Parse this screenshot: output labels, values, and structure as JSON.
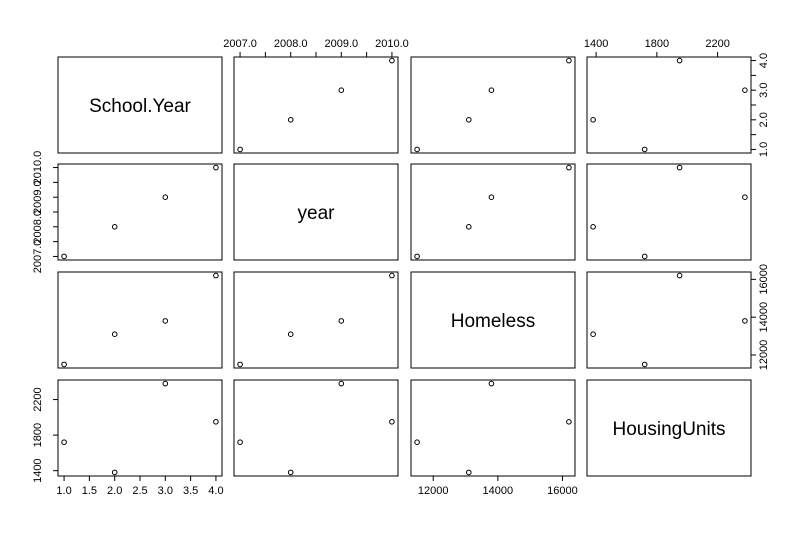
{
  "chart_data": {
    "type": "scatter-matrix",
    "variables": [
      "School.Year",
      "year",
      "Homeless",
      "HousingUnits"
    ],
    "data": {
      "School.Year": [
        1,
        2,
        3,
        4
      ],
      "year": [
        2007,
        2008,
        2009,
        2010
      ],
      "Homeless": [
        11500,
        13100,
        13800,
        16200
      ],
      "HousingUnits": [
        1720,
        1380,
        2380,
        1950
      ]
    },
    "axes": {
      "School.Year": {
        "range": [
          1,
          4
        ],
        "ticks": [
          "1.0",
          "1.5",
          "2.0",
          "2.5",
          "3.0",
          "3.5",
          "4.0"
        ]
      },
      "year": {
        "range": [
          2007,
          2010
        ],
        "ticks": [
          "2007.0",
          "2007.5",
          "2008.0",
          "2008.5",
          "2009.0",
          "2009.5",
          "2010.0"
        ]
      },
      "Homeless": {
        "range": [
          11500,
          16200
        ],
        "ticks": [
          "12000",
          "14000",
          "16000"
        ]
      },
      "HousingUnits": {
        "range": [
          1380,
          2380
        ],
        "ticks": [
          "1400",
          "1800",
          "2200"
        ]
      }
    },
    "tick_labels": {
      "top": [
        {
          "panel": 1,
          "labels": [
            "2007.0",
            "2008.0",
            "2009.0",
            "2010.0"
          ]
        },
        {
          "panel": 3,
          "labels": [
            "1400",
            "1800",
            "2200"
          ]
        }
      ],
      "bottom": [
        {
          "panel": 0,
          "labels": [
            "1.0",
            "1.5",
            "2.0",
            "2.5",
            "3.0",
            "3.5",
            "4.0"
          ]
        },
        {
          "panel": 2,
          "labels": [
            "12000",
            "14000",
            "16000"
          ]
        }
      ],
      "left": [
        {
          "panel": 1,
          "labels": [
            "2007.0",
            "2008.0",
            "2009.0",
            "2010.0"
          ]
        },
        {
          "panel": 3,
          "labels": [
            "1400",
            "1800",
            "2200"
          ]
        }
      ],
      "right": [
        {
          "panel": 0,
          "labels": [
            "1.0",
            "2.0",
            "3.0",
            "4.0"
          ]
        },
        {
          "panel": 2,
          "labels": [
            "12000",
            "14000",
            "16000"
          ]
        }
      ]
    }
  }
}
